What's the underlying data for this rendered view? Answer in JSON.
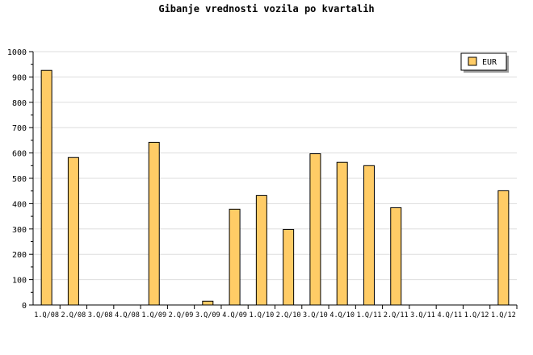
{
  "chart_data": {
    "type": "bar",
    "title": "Gibanje vrednosti vozila po kvartalih",
    "xlabel": "",
    "ylabel": "",
    "ylim": [
      0,
      1000
    ],
    "yticks": [
      0,
      100,
      200,
      300,
      400,
      500,
      600,
      700,
      800,
      900,
      1000
    ],
    "grid": true,
    "legend_placement": "top-right",
    "categories": [
      "1.Q/08",
      "2.Q/08",
      "3.Q/08",
      "4.Q/08",
      "1.Q/09",
      "2.Q/09",
      "3.Q/09",
      "4.Q/09",
      "1.Q/10",
      "2.Q/10",
      "3.Q/10",
      "4.Q/10",
      "1.Q/11",
      "2.Q/11",
      "3.Q/11",
      "4.Q/11",
      "1.Q/12",
      "1.Q/12"
    ],
    "series": [
      {
        "name": "EUR",
        "color": "#ffcc66",
        "values": [
          926,
          582,
          0,
          0,
          642,
          0,
          15,
          378,
          432,
          298,
          597,
          563,
          550,
          384,
          0,
          0,
          0,
          451
        ]
      }
    ]
  }
}
